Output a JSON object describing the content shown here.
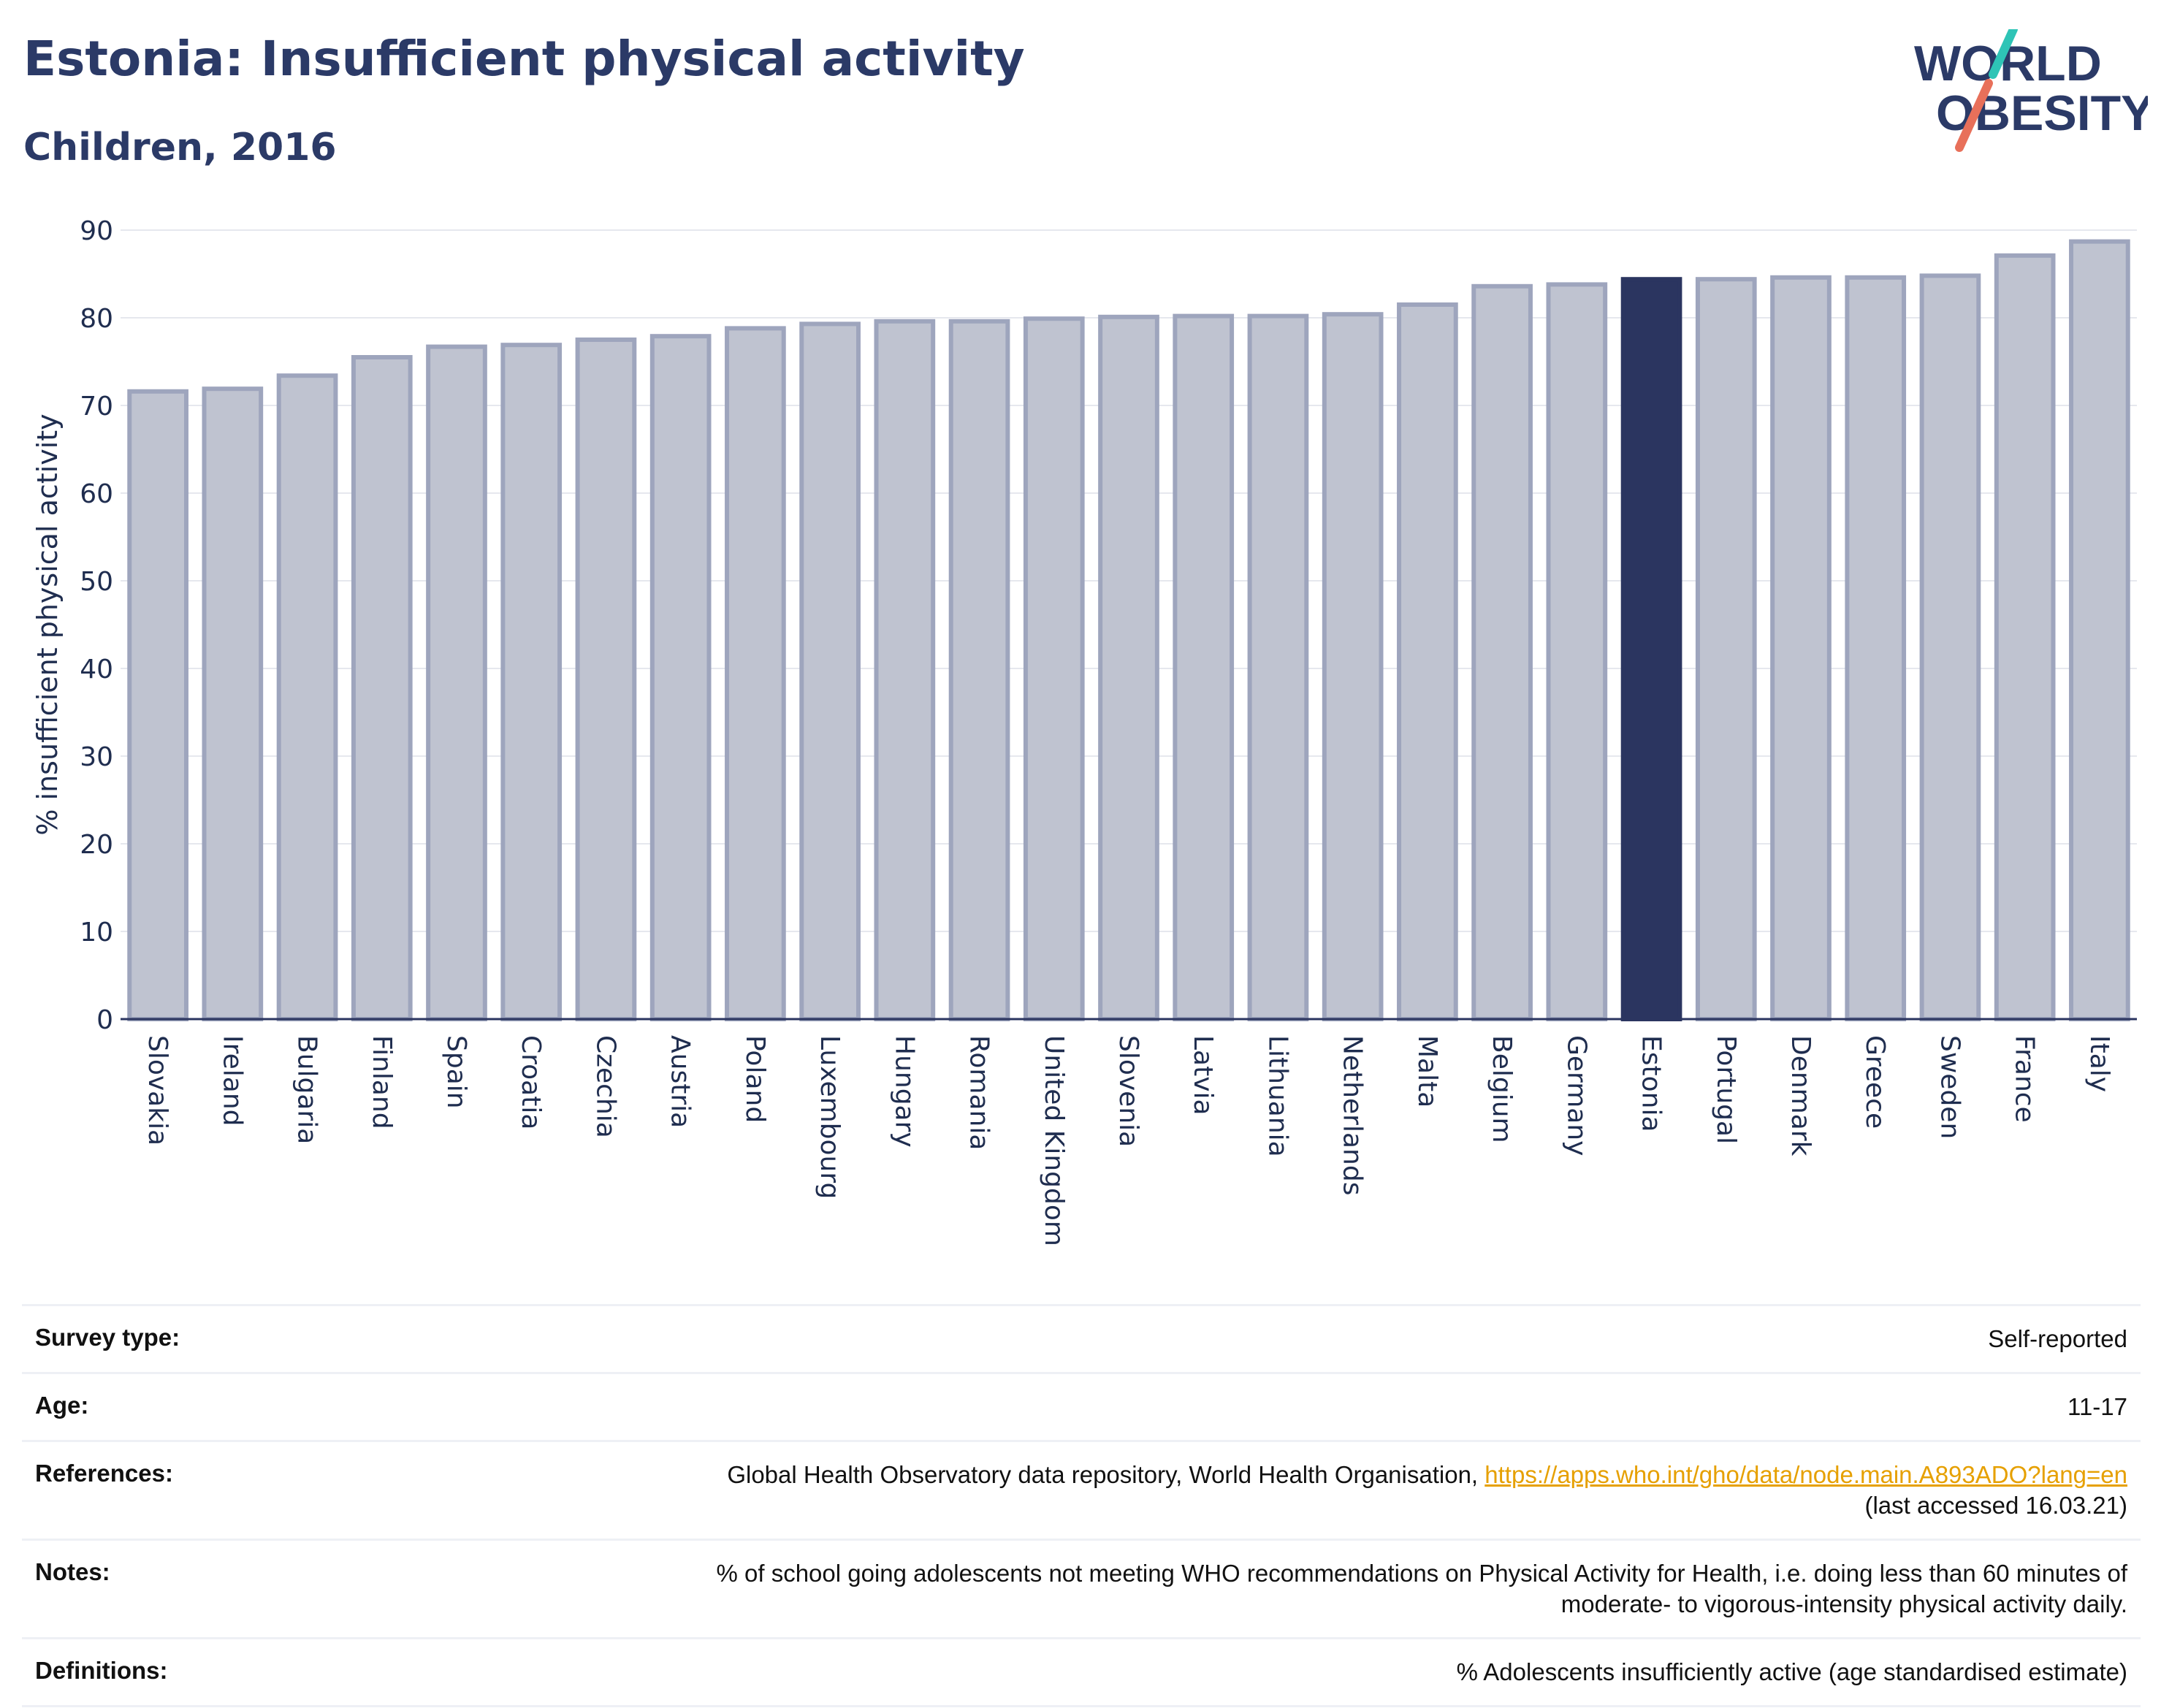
{
  "header": {
    "title": "Estonia: Insufficient physical activity",
    "subtitle": "Children, 2016"
  },
  "logo": {
    "line1": "WORLD",
    "line2": "OBESITY",
    "colors": {
      "text": "#2b3a67",
      "slash_top": "#2ec4b6",
      "slash_bottom": "#e8705a"
    }
  },
  "chart_data": {
    "type": "bar",
    "title": "Estonia: Insufficient physical activity",
    "subtitle": "Children, 2016",
    "ylabel": "% insufficient physical activity",
    "xlabel": "",
    "ylim": [
      0,
      90
    ],
    "yticks": [
      0,
      10,
      20,
      30,
      40,
      50,
      60,
      70,
      80,
      90
    ],
    "grid": true,
    "highlight": "Estonia",
    "colors": {
      "bar": "#bfc3d0",
      "bar_border": "#9ea5bd",
      "highlight": "#2b3560",
      "grid": "#e6e8ee",
      "axis": "#2b3560"
    },
    "categories": [
      "Slovakia",
      "Ireland",
      "Bulgaria",
      "Finland",
      "Spain",
      "Croatia",
      "Czechia",
      "Austria",
      "Poland",
      "Luxembourg",
      "Hungary",
      "Romania",
      "United Kingdom",
      "Slovenia",
      "Latvia",
      "Lithuania",
      "Netherlands",
      "Malta",
      "Belgium",
      "Germany",
      "Estonia",
      "Portugal",
      "Denmark",
      "Greece",
      "Sweden",
      "France",
      "Italy"
    ],
    "values": [
      71.6,
      71.9,
      73.4,
      75.5,
      76.7,
      76.9,
      77.5,
      77.9,
      78.8,
      79.3,
      79.6,
      79.6,
      79.9,
      80.1,
      80.2,
      80.2,
      80.4,
      81.5,
      83.6,
      83.8,
      84.4,
      84.4,
      84.6,
      84.6,
      84.8,
      87.1,
      88.7
    ]
  },
  "meta": {
    "survey_type_label": "Survey type:",
    "survey_type_value": "Self-reported",
    "age_label": "Age:",
    "age_value": "11-17",
    "references_label": "References:",
    "references_text": "Global Health Observatory data repository, World Health Organisation, ",
    "references_link": "https://apps.who.int/gho/data/node.main.A893ADO?lang=en",
    "references_accessed": "(last accessed 16.03.21)",
    "notes_label": "Notes:",
    "notes_line1": "% of school going adolescents not meeting WHO recommendations on Physical Activity for Health, i.e. doing less than 60 minutes of",
    "notes_line2": "moderate- to vigorous-intensity physical activity daily.",
    "definitions_label": "Definitions:",
    "definitions_value": "% Adolescents insufficiently active (age standardised estimate)"
  }
}
